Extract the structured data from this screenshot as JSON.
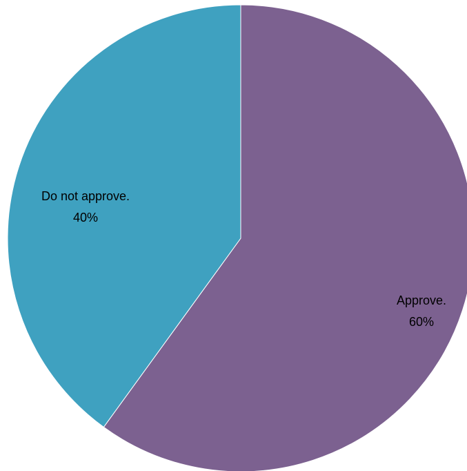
{
  "chart_data": {
    "type": "pie",
    "title": "",
    "start_angle_deg": 0,
    "direction": "clockwise",
    "legend": "none",
    "slices": [
      {
        "label": "Approve.",
        "value": 60,
        "percent_label": "60%",
        "color": "#7C6190"
      },
      {
        "label": "Do not approve.",
        "value": 40,
        "percent_label": "40%",
        "color": "#3FA1C0"
      }
    ]
  }
}
